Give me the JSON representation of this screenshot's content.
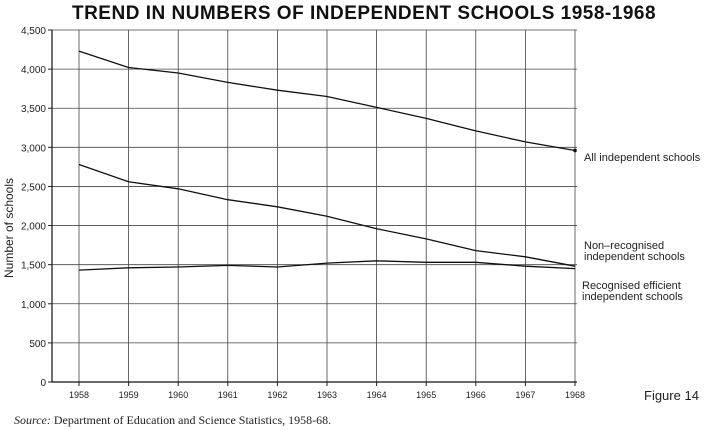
{
  "source": {
    "prefix": "Source:",
    "text": "Department of Education and Science Statistics, 1958-68."
  },
  "figure_label": "Figure 14",
  "chart_data": {
    "type": "line",
    "title": "TREND IN NUMBERS OF INDEPENDENT SCHOOLS 1958-1968",
    "xlabel": "",
    "ylabel": "Number of schools",
    "x": [
      1958,
      1959,
      1960,
      1961,
      1962,
      1963,
      1964,
      1965,
      1966,
      1967,
      1968
    ],
    "x_tick_labels": [
      "1958",
      "1959",
      "1960",
      "1961",
      "1962",
      "1963",
      "1964",
      "1965",
      "1966",
      "1967",
      "1968"
    ],
    "ylim": [
      0,
      4500
    ],
    "y_ticks": [
      0,
      500,
      1000,
      1500,
      2000,
      2500,
      3000,
      3500,
      4000,
      4500
    ],
    "y_tick_labels": [
      "0",
      "500",
      "1,000",
      "1,500",
      "2,000",
      "2,500",
      "3,000",
      "3,500",
      "4,000",
      "4,500"
    ],
    "grid": true,
    "legend": "series labels at right end of lines",
    "series": [
      {
        "name": "All independent schools",
        "label_lines": [
          "All independent schools"
        ],
        "values": [
          4230,
          4020,
          3950,
          3830,
          3730,
          3650,
          3510,
          3370,
          3210,
          3070,
          2960
        ]
      },
      {
        "name": "Non-recognised independent schools",
        "label_lines": [
          "Non–recognised",
          "independent schools"
        ],
        "values": [
          2780,
          2560,
          2470,
          2330,
          2240,
          2120,
          1960,
          1830,
          1680,
          1600,
          1480
        ]
      },
      {
        "name": "Recognised efficient independent schools",
        "label_lines": [
          "Recognised efficient",
          "independent schools"
        ],
        "values": [
          1430,
          1460,
          1470,
          1490,
          1470,
          1520,
          1550,
          1530,
          1530,
          1480,
          1450
        ]
      }
    ]
  }
}
